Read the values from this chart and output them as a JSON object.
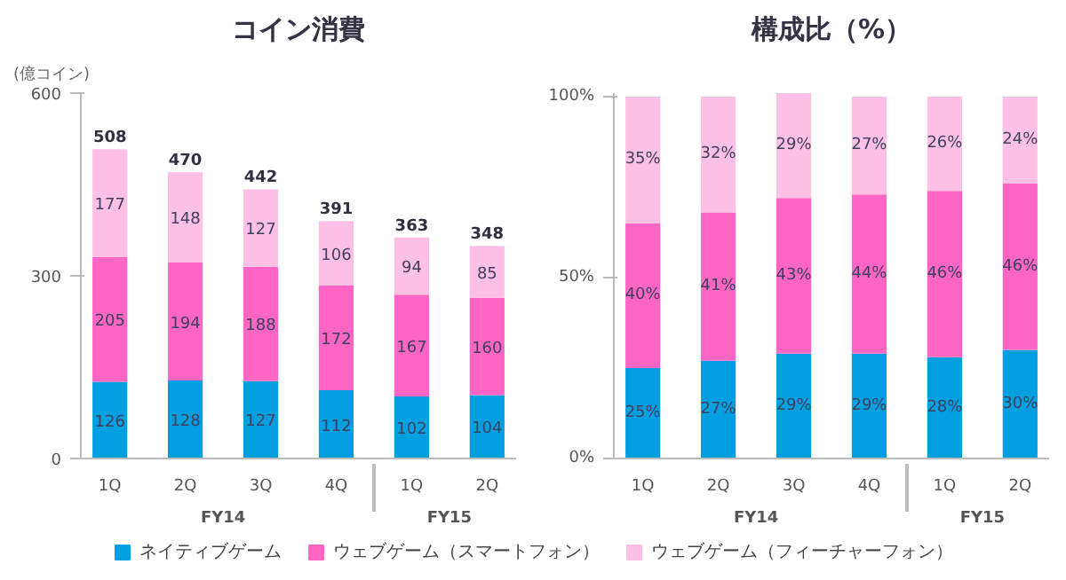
{
  "chart_data": [
    {
      "type": "bar",
      "title": "コイン消費",
      "ylabel": "(億コイン)",
      "categories": [
        "1Q",
        "2Q",
        "3Q",
        "4Q",
        "1Q",
        "2Q"
      ],
      "stacked": true,
      "data_labels": true,
      "totals": [
        "508",
        "470",
        "442",
        "391",
        "363",
        "348"
      ],
      "ylim": [
        0,
        600
      ],
      "yticks": [
        0,
        300,
        600
      ],
      "grid": false,
      "legend": "bottom",
      "annotations": [
        "FY14",
        "FY15"
      ],
      "series": [
        {
          "name": "ネイティブゲーム",
          "color": "#009fdf",
          "values": [
            126,
            128,
            127,
            112,
            102,
            104
          ]
        },
        {
          "name": "ウェブゲーム（スマートフォン）",
          "color": "#ff66c4",
          "values": [
            205,
            194,
            188,
            172,
            167,
            160
          ]
        },
        {
          "name": "ウェブゲーム（フィーチャーフォン）",
          "color": "#ffc0e6",
          "values": [
            177,
            148,
            127,
            106,
            94,
            85
          ]
        }
      ]
    },
    {
      "type": "bar",
      "title": "構成比（%）",
      "categories": [
        "1Q",
        "2Q",
        "3Q",
        "4Q",
        "1Q",
        "2Q"
      ],
      "stacked": true,
      "ylim": [
        0,
        101
      ],
      "yticks": [
        {
          "value": 0,
          "label": "0%"
        },
        {
          "value": 50,
          "label": "50%"
        },
        {
          "value": 100,
          "label": "100%"
        }
      ],
      "grid": false,
      "annotations": [
        "FY14",
        "FY15"
      ],
      "series": [
        {
          "color": "#009fdf",
          "values": [
            25,
            27,
            29,
            29,
            28,
            30
          ],
          "value_labels": [
            "25%",
            "27%",
            "29%",
            "29%",
            "28%",
            "30%"
          ]
        },
        {
          "color": "#ff66c4",
          "values": [
            40,
            41,
            43,
            44,
            46,
            46
          ],
          "value_labels": [
            "40%",
            "41%",
            "43%",
            "44%",
            "46%",
            "46%"
          ]
        },
        {
          "color": "#ffc0e6",
          "values": [
            35,
            32,
            29,
            27,
            26,
            24
          ],
          "value_labels": [
            "35%",
            "32%",
            "29%",
            "27%",
            "26%",
            "24%"
          ]
        }
      ]
    }
  ]
}
